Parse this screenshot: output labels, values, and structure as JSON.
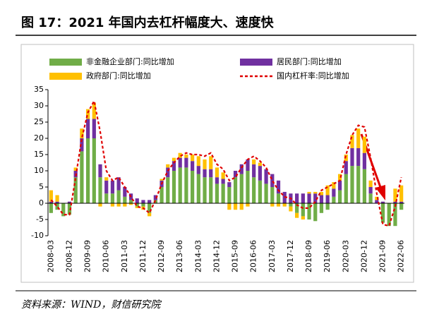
{
  "chart_data": {
    "type": "bar",
    "title": "图 17：2021 年国内去杠杆幅度大、速度快",
    "source": "资料来源：WIND，财信研究院",
    "categories": [
      "2008-03",
      null,
      null,
      "2008-12",
      null,
      null,
      "2009-09",
      null,
      null,
      "2010-06",
      null,
      null,
      "2011-03",
      null,
      null,
      "2011-12",
      null,
      null,
      "2012-09",
      null,
      null,
      "2013-06",
      null,
      null,
      "2014-03",
      null,
      null,
      "2014-12",
      null,
      null,
      "2015-09",
      null,
      null,
      "2016-06",
      null,
      null,
      "2017-03",
      null,
      null,
      "2017-12",
      null,
      null,
      "2018-09",
      null,
      null,
      "2019-06",
      null,
      null,
      "2020-03",
      null,
      null,
      "2020-12",
      null,
      null,
      "2021-09",
      null,
      null,
      "2022-06"
    ],
    "ylim": [
      -10,
      35
    ],
    "yticks": [
      -10,
      -5,
      0,
      5,
      10,
      15,
      20,
      25,
      30,
      35
    ],
    "series": [
      {
        "name": "非金融企业部门:同比增加",
        "color": "#70ad47",
        "type": "bar",
        "values": [
          -3,
          -2,
          -4,
          -3.5,
          8,
          16,
          20,
          20,
          8,
          3,
          3,
          4,
          2,
          1,
          -1,
          -1,
          -3,
          1,
          5,
          8,
          10,
          11,
          11,
          10,
          9,
          8,
          8,
          6,
          6,
          5,
          8,
          9,
          10,
          8,
          7,
          6,
          5,
          3,
          0,
          -1,
          -3,
          -4,
          -5,
          -5.5,
          -3,
          -2,
          2,
          4,
          9,
          11.5,
          11.5,
          10.5,
          3,
          0,
          -6,
          -7,
          -7,
          -2
        ]
      },
      {
        "name": "居民部门:同比增加",
        "color": "#7030a0",
        "type": "bar",
        "values": [
          0.5,
          0.5,
          0,
          0.5,
          2,
          4,
          6,
          6,
          4,
          4,
          4,
          4,
          3,
          2,
          1.5,
          1,
          1,
          1.5,
          2,
          3,
          3,
          3,
          3,
          3,
          2.5,
          2.5,
          2.5,
          2,
          1.5,
          1.5,
          2,
          3,
          3.5,
          4,
          4.5,
          4.5,
          4,
          4,
          3.5,
          3,
          3,
          3,
          3,
          3,
          2.5,
          2.5,
          2.5,
          3,
          4,
          5.5,
          5.5,
          5,
          2,
          1,
          0.5,
          0,
          0.5,
          0.5
        ]
      },
      {
        "name": "政府部门:同比增加",
        "color": "#ffc000",
        "type": "bar",
        "values": [
          3.5,
          2,
          0,
          0,
          1,
          3,
          3,
          5,
          -1,
          1,
          -1,
          -1,
          -1,
          -0.5,
          -0.5,
          -1,
          -1,
          0,
          0.5,
          1,
          1,
          1.5,
          1,
          2,
          3,
          3,
          4,
          3,
          2,
          -2,
          -2,
          -2,
          -1,
          1.5,
          1,
          0,
          -1,
          -1,
          -1,
          -1.5,
          -1.5,
          -1,
          0.5,
          0.5,
          1,
          3,
          2,
          2,
          2,
          4,
          6,
          5,
          2,
          1,
          0,
          0,
          4,
          5
        ]
      },
      {
        "name": "国内杠杆率:同比增加",
        "color": "#e00000",
        "type": "line",
        "values": [
          1,
          -1,
          -3.5,
          -3.5,
          8,
          20,
          28,
          31.5,
          22,
          10,
          7,
          8,
          5,
          2,
          -1,
          -1.5,
          -3,
          1,
          6,
          10,
          12.5,
          14.5,
          15.5,
          15,
          15,
          14.5,
          15.5,
          12,
          10.5,
          7,
          8,
          11,
          13.5,
          14.5,
          13,
          11,
          7,
          4,
          2,
          1.5,
          -0.5,
          -1.5,
          -1.5,
          0.5,
          4,
          5,
          6,
          7,
          15,
          21,
          24,
          23.5,
          14,
          3,
          -6.5,
          -7,
          -1,
          8
        ]
      }
    ]
  }
}
